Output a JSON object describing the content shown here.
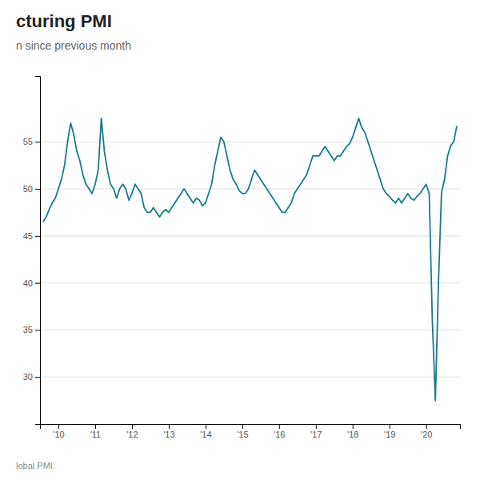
{
  "chart_data": {
    "type": "line",
    "title": "cturing PMI",
    "subtitle": "n since previous month",
    "annotations": [
      "lobal PMI."
    ],
    "color": "#1a7a8a",
    "grid": "y",
    "xlim": [
      2009.5,
      2020.92
    ],
    "ylim": [
      25,
      62
    ],
    "yticks": [
      30,
      35,
      40,
      45,
      50,
      55
    ],
    "xticks": [
      {
        "value": 2010,
        "label": "'10"
      },
      {
        "value": 2011,
        "label": "'11"
      },
      {
        "value": 2012,
        "label": "'12"
      },
      {
        "value": 2013,
        "label": "'13"
      },
      {
        "value": 2014,
        "label": "'14"
      },
      {
        "value": 2015,
        "label": "'15"
      },
      {
        "value": 2016,
        "label": "'16"
      },
      {
        "value": 2017,
        "label": "'17"
      },
      {
        "value": 2018,
        "label": "'18"
      },
      {
        "value": 2019,
        "label": "'19"
      },
      {
        "value": 2020,
        "label": "'20"
      }
    ],
    "x": [
      2009.583,
      2009.667,
      2009.75,
      2009.833,
      2009.917,
      2010.0,
      2010.083,
      2010.167,
      2010.25,
      2010.333,
      2010.417,
      2010.5,
      2010.583,
      2010.667,
      2010.75,
      2010.833,
      2010.917,
      2011.0,
      2011.083,
      2011.167,
      2011.25,
      2011.333,
      2011.417,
      2011.5,
      2011.583,
      2011.667,
      2011.75,
      2011.833,
      2011.917,
      2012.0,
      2012.083,
      2012.167,
      2012.25,
      2012.333,
      2012.417,
      2012.5,
      2012.583,
      2012.667,
      2012.75,
      2012.833,
      2012.917,
      2013.0,
      2013.083,
      2013.167,
      2013.25,
      2013.333,
      2013.417,
      2013.5,
      2013.583,
      2013.667,
      2013.75,
      2013.833,
      2013.917,
      2014.0,
      2014.083,
      2014.167,
      2014.25,
      2014.333,
      2014.417,
      2014.5,
      2014.583,
      2014.667,
      2014.75,
      2014.833,
      2014.917,
      2015.0,
      2015.083,
      2015.167,
      2015.25,
      2015.333,
      2015.417,
      2015.5,
      2015.583,
      2015.667,
      2015.75,
      2015.833,
      2015.917,
      2016.0,
      2016.083,
      2016.167,
      2016.25,
      2016.333,
      2016.417,
      2016.5,
      2016.583,
      2016.667,
      2016.75,
      2016.833,
      2016.917,
      2017.0,
      2017.083,
      2017.167,
      2017.25,
      2017.333,
      2017.417,
      2017.5,
      2017.583,
      2017.667,
      2017.75,
      2017.833,
      2017.917,
      2018.0,
      2018.083,
      2018.167,
      2018.25,
      2018.333,
      2018.417,
      2018.5,
      2018.583,
      2018.667,
      2018.75,
      2018.833,
      2018.917,
      2019.0,
      2019.083,
      2019.167,
      2019.25,
      2019.333,
      2019.417,
      2019.5,
      2019.583,
      2019.667,
      2019.75,
      2019.833,
      2019.917,
      2020.0,
      2020.083,
      2020.167,
      2020.25,
      2020.333,
      2020.417,
      2020.5,
      2020.583,
      2020.667,
      2020.75,
      2020.833
    ],
    "values": [
      46.5,
      47.0,
      47.8,
      48.5,
      49.0,
      50.0,
      51.0,
      52.5,
      55.0,
      57.0,
      55.8,
      54.0,
      53.0,
      51.5,
      50.5,
      50.0,
      49.5,
      50.5,
      52.0,
      57.5,
      54.0,
      52.0,
      50.5,
      50.0,
      49.0,
      50.0,
      50.5,
      50.0,
      48.8,
      49.5,
      50.5,
      50.0,
      49.5,
      48.0,
      47.5,
      47.5,
      48.0,
      47.5,
      47.0,
      47.5,
      47.8,
      47.5,
      48.0,
      48.5,
      49.0,
      49.5,
      50.0,
      49.5,
      49.0,
      48.5,
      49.0,
      48.8,
      48.2,
      48.5,
      49.5,
      50.5,
      52.5,
      54.0,
      55.5,
      55.0,
      53.5,
      52.0,
      51.0,
      50.5,
      49.8,
      49.5,
      49.5,
      50.0,
      51.0,
      52.0,
      51.5,
      51.0,
      50.5,
      50.0,
      49.5,
      49.0,
      48.5,
      48.0,
      47.5,
      47.5,
      48.0,
      48.5,
      49.5,
      50.0,
      50.5,
      51.0,
      51.5,
      52.5,
      53.5,
      53.5,
      53.5,
      54.0,
      54.5,
      54.0,
      53.5,
      53.0,
      53.5,
      53.5,
      54.0,
      54.5,
      54.8,
      55.5,
      56.5,
      57.5,
      56.5,
      56.0,
      55.0,
      54.0,
      53.0,
      52.0,
      51.0,
      50.0,
      49.5,
      49.2,
      48.8,
      48.5,
      49.0,
      48.5,
      49.0,
      49.5,
      49.0,
      48.8,
      49.2,
      49.5,
      50.0,
      50.5,
      49.5,
      36.1,
      27.5,
      39.8,
      49.6,
      51.0,
      53.5,
      54.6,
      55.0,
      56.7
    ]
  }
}
